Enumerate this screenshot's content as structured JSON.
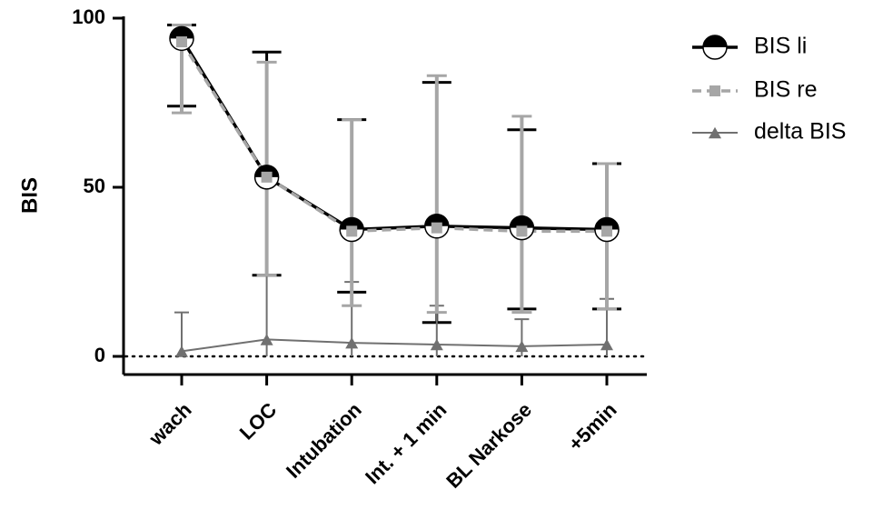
{
  "chart_data": {
    "type": "line",
    "ylabel": "BIS",
    "xlabel": "",
    "ylim": [
      0,
      100
    ],
    "yticks": [
      0,
      50,
      100
    ],
    "reference_line": {
      "y": 0,
      "style": "dotted"
    },
    "legend_position": "top-right",
    "categories": [
      "wach",
      "LOC",
      "Intubation",
      "Int. + 1 min",
      "BL Narkose",
      "+5min"
    ],
    "series": [
      {
        "name": "BIS li",
        "marker": "half-filled-circle",
        "line_style": "solid",
        "color": "#000000",
        "values": [
          94,
          53,
          37.5,
          38.5,
          38,
          37.5
        ],
        "err_low": [
          74,
          24,
          19,
          10,
          14,
          14
        ],
        "err_high": [
          98,
          90,
          70,
          81,
          67,
          57
        ]
      },
      {
        "name": "BIS re",
        "marker": "square",
        "line_style": "dashed",
        "color": "#a6a6a6",
        "values": [
          93,
          53,
          37,
          38,
          37,
          37
        ],
        "err_low": [
          72,
          24,
          15,
          13,
          13,
          14
        ],
        "err_high": [
          98,
          87,
          70,
          83,
          71,
          57
        ]
      },
      {
        "name": "delta BIS",
        "marker": "triangle",
        "line_style": "solid",
        "color": "#707070",
        "values": [
          1.5,
          5,
          4,
          3.5,
          3,
          3.5
        ],
        "err_low": [
          0,
          0,
          0,
          0,
          0,
          0
        ],
        "err_high": [
          13,
          24,
          22,
          15,
          11,
          17
        ]
      }
    ]
  }
}
